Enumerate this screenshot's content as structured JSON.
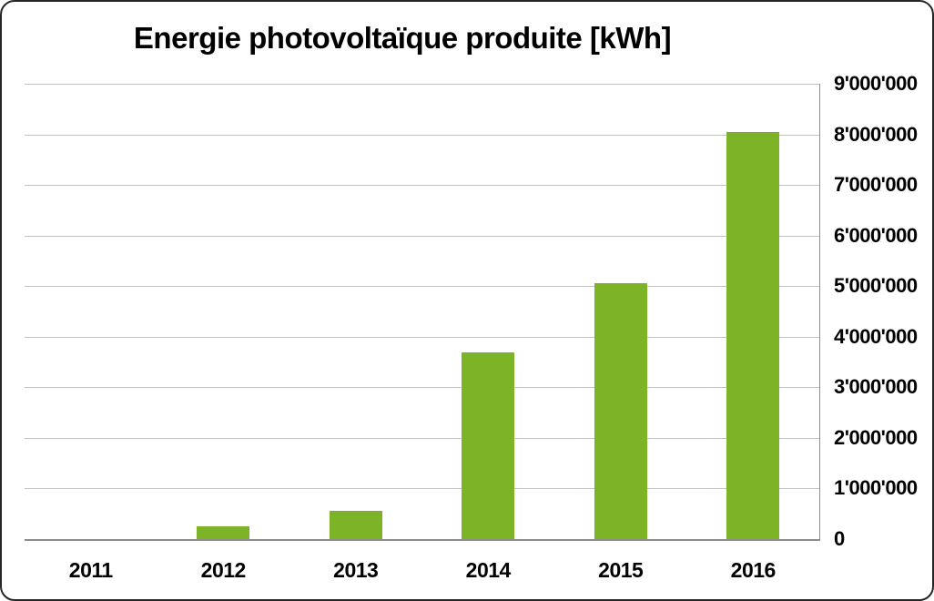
{
  "chart_data": {
    "type": "bar",
    "title": "Energie photovoltaïque produite [kWh]",
    "categories": [
      "2011",
      "2012",
      "2013",
      "2014",
      "2015",
      "2016"
    ],
    "values": [
      0,
      250000,
      560000,
      3690000,
      5060000,
      8040000
    ],
    "series_name": "Energie photovoltaïque produite",
    "xlabel": "",
    "ylabel": "",
    "ylim": [
      0,
      9000000
    ],
    "ytick_interval": 1000000,
    "ytick_labels": [
      "0",
      "1'000'000",
      "2'000'000",
      "3'000'000",
      "4'000'000",
      "5'000'000",
      "6'000'000",
      "7'000'000",
      "8'000'000",
      "9'000'000"
    ],
    "yaxis_side": "right",
    "grid": "horizontal",
    "legend": "none"
  },
  "colors": {
    "bar": "#7DB427",
    "gridline": "#C3C3C3",
    "axis": "#8C8C8C",
    "frame_border": "#262626",
    "background": "#FFFFFF",
    "text": "#000000"
  }
}
